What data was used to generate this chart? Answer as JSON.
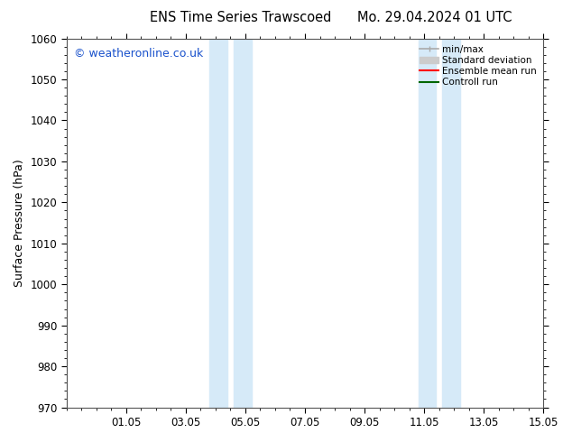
{
  "title_left": "ENS Time Series Trawscoed",
  "title_right": "Mo. 29.04.2024 01 UTC",
  "ylabel": "Surface Pressure (hPa)",
  "ylim": [
    970,
    1060
  ],
  "yticks": [
    970,
    980,
    990,
    1000,
    1010,
    1020,
    1030,
    1040,
    1050,
    1060
  ],
  "xtick_labels": [
    "01.05",
    "03.05",
    "05.05",
    "07.05",
    "09.05",
    "11.05",
    "13.05",
    "15.05"
  ],
  "shade_color": "#d6eaf8",
  "background_color": "#ffffff",
  "watermark": "© weatheronline.co.uk",
  "watermark_color": "#1a52cc",
  "legend_labels": [
    "min/max",
    "Standard deviation",
    "Ensemble mean run",
    "Controll run"
  ],
  "legend_colors": [
    "#aaaaaa",
    "#cccccc",
    "#ff0000",
    "#006600"
  ],
  "title_fontsize": 10.5,
  "tick_fontsize": 8.5,
  "ylabel_fontsize": 9,
  "watermark_fontsize": 9
}
